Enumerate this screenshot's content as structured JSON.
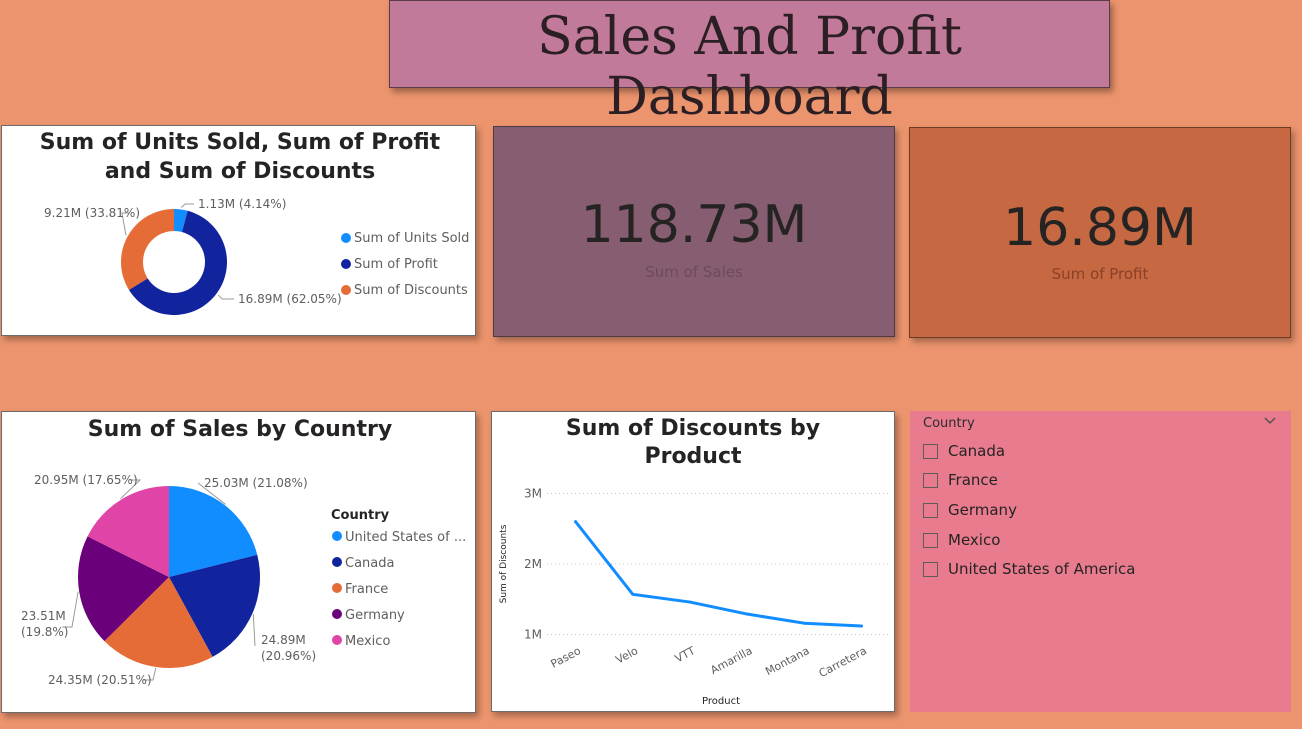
{
  "dashboard_title": "Sales And Profit Dashboard",
  "kpis": [
    {
      "value": "118.73M",
      "label": "Sum of  Sales",
      "value_color": "#252423",
      "label_color": "#6d4a5c"
    },
    {
      "value": "16.89M",
      "label": "Sum of Profit",
      "value_color": "#252423",
      "label_color": "#8a4128"
    }
  ],
  "slicer": {
    "title": "Country",
    "options": [
      "Canada",
      "France",
      "Germany",
      "Mexico",
      "United States of America"
    ]
  },
  "chart_data": [
    {
      "type": "pie",
      "variant": "donut",
      "title": "Sum of Units Sold, Sum of Profit and Sum of Discounts",
      "title_lines": [
        "Sum of Units Sold, Sum of Profit",
        "and Sum of Discounts"
      ],
      "legend_position": "right",
      "slices": [
        {
          "name": "Sum of Units Sold",
          "value": 1.13,
          "percent": 4.14,
          "label": "1.13M (4.14%)",
          "color": "#118DFF"
        },
        {
          "name": "Sum of Profit",
          "value": 16.89,
          "percent": 62.05,
          "label": "16.89M (62.05%)",
          "color": "#12239E"
        },
        {
          "name": "Sum of Discounts",
          "value": 9.21,
          "percent": 33.81,
          "label": "9.21M (33.81%)",
          "color": "#E66C37"
        }
      ]
    },
    {
      "type": "pie",
      "title": "Sum of Sales by Country",
      "legend_title": "Country",
      "legend_position": "right",
      "slices": [
        {
          "name": "United States of America",
          "legend_label": "United States of ...",
          "value": 25.03,
          "percent": 21.08,
          "label": [
            "25.03M (21.08%)"
          ],
          "color": "#118DFF"
        },
        {
          "name": "Canada",
          "legend_label": "Canada",
          "value": 24.89,
          "percent": 20.96,
          "label": [
            "24.89M",
            "(20.96%)"
          ],
          "color": "#12239E"
        },
        {
          "name": "France",
          "legend_label": "France",
          "value": 24.35,
          "percent": 20.51,
          "label": [
            "24.35M (20.51%)"
          ],
          "color": "#E66C37"
        },
        {
          "name": "Germany",
          "legend_label": "Germany",
          "value": 23.51,
          "percent": 19.8,
          "label": [
            "23.51M",
            "(19.8%)"
          ],
          "color": "#6B007B"
        },
        {
          "name": "Mexico",
          "legend_label": "Mexico",
          "value": 20.95,
          "percent": 17.65,
          "label": [
            "20.95M (17.65%)"
          ],
          "color": "#E044A7"
        }
      ]
    },
    {
      "type": "line",
      "title": "Sum of Discounts by Product",
      "title_lines": [
        "Sum of Discounts by",
        "Product"
      ],
      "xlabel": "Product",
      "ylabel": "Sum of Discounts",
      "categories": [
        "Paseo",
        "Velo",
        "VTT",
        "Amarilla",
        "Montana",
        "Carretera"
      ],
      "series": [
        {
          "values": [
            2.6,
            1.57,
            1.46,
            1.29,
            1.16,
            1.12
          ],
          "color": "#118DFF"
        }
      ],
      "ylim": [
        0.95,
        3.05
      ],
      "yticks": [
        1,
        2,
        3
      ],
      "ytick_labels": [
        "1M",
        "2M",
        "3M"
      ],
      "grid": true
    }
  ]
}
